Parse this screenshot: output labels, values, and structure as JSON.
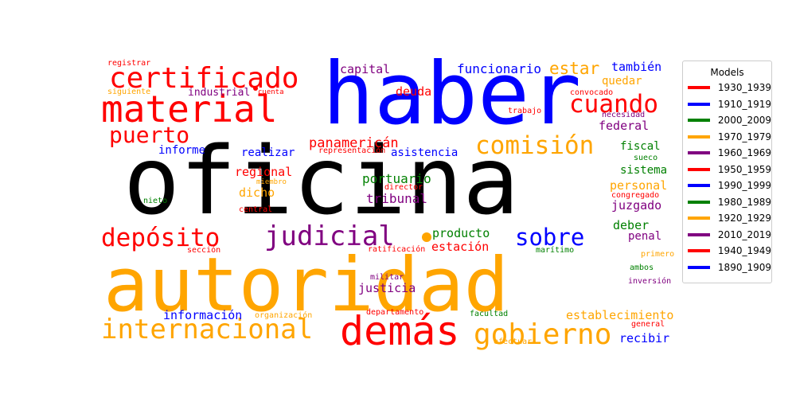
{
  "chart_data": {
    "type": "wordcloud",
    "legend": {
      "title": "Models",
      "placement": "right",
      "entries": [
        {
          "label": "1930_1939",
          "color": "#ff0000"
        },
        {
          "label": "1910_1919",
          "color": "#0000ff"
        },
        {
          "label": "2000_2009",
          "color": "#008000"
        },
        {
          "label": "1970_1979",
          "color": "#ffa500"
        },
        {
          "label": "1960_1969",
          "color": "#800080"
        },
        {
          "label": "1950_1959",
          "color": "#ff0000"
        },
        {
          "label": "1990_1999",
          "color": "#0000ff"
        },
        {
          "label": "1980_1989",
          "color": "#008000"
        },
        {
          "label": "1920_1929",
          "color": "#ffa500"
        },
        {
          "label": "2010_2019",
          "color": "#800080"
        },
        {
          "label": "1940_1949",
          "color": "#ff0000"
        },
        {
          "label": "1890_1909",
          "color": "#0000ff"
        }
      ]
    },
    "words": [
      {
        "text": "oficina",
        "color": "#000000"
      },
      {
        "text": "haber",
        "color": "#0000ff"
      },
      {
        "text": "autoridad",
        "color": "#ffa500"
      },
      {
        "text": "material",
        "color": "#ff0000"
      },
      {
        "text": "certificado",
        "color": "#ff0000"
      },
      {
        "text": "demás",
        "color": "#ff0000"
      },
      {
        "text": "internacional",
        "color": "#ffa500"
      },
      {
        "text": "gobierno",
        "color": "#ffa500"
      },
      {
        "text": "comisión",
        "color": "#ffa500"
      },
      {
        "text": "judicial",
        "color": "#800080"
      },
      {
        "text": "depósito",
        "color": "#ff0000"
      },
      {
        "text": "cuando",
        "color": "#ff0000"
      },
      {
        "text": "puerto",
        "color": "#ff0000"
      },
      {
        "text": "sobre",
        "color": "#0000ff"
      },
      {
        "text": "panamericán",
        "color": "#ff0000"
      },
      {
        "text": "estar",
        "color": "#ffa500"
      },
      {
        "text": "funcionario",
        "color": "#0000ff"
      },
      {
        "text": "deuda",
        "color": "#ff0000"
      },
      {
        "text": "capital",
        "color": "#800080"
      },
      {
        "text": "también",
        "color": "#0000ff"
      },
      {
        "text": "informe",
        "color": "#0000ff"
      },
      {
        "text": "realizar",
        "color": "#0000ff"
      },
      {
        "text": "asistencia",
        "color": "#0000ff"
      },
      {
        "text": "industrial",
        "color": "#800080"
      },
      {
        "text": "quedar",
        "color": "#ffa500"
      },
      {
        "text": "federal",
        "color": "#800080"
      },
      {
        "text": "fiscal",
        "color": "#008000"
      },
      {
        "text": "regional",
        "color": "#ff0000"
      },
      {
        "text": "portuario",
        "color": "#008000"
      },
      {
        "text": "tribunal",
        "color": "#800080"
      },
      {
        "text": "dicho",
        "color": "#ffa500"
      },
      {
        "text": "sistema",
        "color": "#008000"
      },
      {
        "text": "personal",
        "color": "#ffa500"
      },
      {
        "text": "juzgado",
        "color": "#800080"
      },
      {
        "text": "deber",
        "color": "#008000"
      },
      {
        "text": "penal",
        "color": "#800080"
      },
      {
        "text": "producto",
        "color": "#008000"
      },
      {
        "text": "estación",
        "color": "#ff0000"
      },
      {
        "text": "justicia",
        "color": "#800080"
      },
      {
        "text": "información",
        "color": "#0000ff"
      },
      {
        "text": "establecimiento",
        "color": "#ffa500"
      },
      {
        "text": "recibir",
        "color": "#0000ff"
      },
      {
        "text": "registrar",
        "color": "#ff0000"
      },
      {
        "text": "siguiente",
        "color": "#ffa500"
      },
      {
        "text": "cuenta",
        "color": "#ff0000"
      },
      {
        "text": "convocado",
        "color": "#ff0000"
      },
      {
        "text": "trabajo",
        "color": "#ff0000"
      },
      {
        "text": "necesidad",
        "color": "#800080"
      },
      {
        "text": "representación",
        "color": "#ff0000"
      },
      {
        "text": "sueco",
        "color": "#008000"
      },
      {
        "text": "miembro",
        "color": "#ffa500"
      },
      {
        "text": "director",
        "color": "#ff0000"
      },
      {
        "text": "congregado",
        "color": "#ff0000"
      },
      {
        "text": "nieto",
        "color": "#008000"
      },
      {
        "text": "central",
        "color": "#ff0000"
      },
      {
        "text": "sección",
        "color": "#ff0000"
      },
      {
        "text": "ratificación",
        "color": "#ff0000"
      },
      {
        "text": "marítimo",
        "color": "#008000"
      },
      {
        "text": "primero",
        "color": "#ffa500"
      },
      {
        "text": "ambos",
        "color": "#008000"
      },
      {
        "text": "militar",
        "color": "#800080"
      },
      {
        "text": "inversión",
        "color": "#800080"
      },
      {
        "text": "organización",
        "color": "#ffa500"
      },
      {
        "text": "departamento",
        "color": "#ff0000"
      },
      {
        "text": "facultad",
        "color": "#008000"
      },
      {
        "text": "general",
        "color": "#ff0000"
      },
      {
        "text": "efectuar",
        "color": "#ffa500"
      }
    ]
  }
}
